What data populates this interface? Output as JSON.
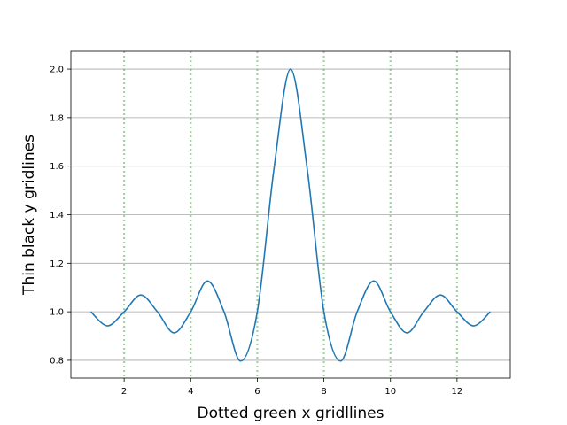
{
  "chart_data": {
    "type": "line",
    "title": "",
    "xlabel": "Dotted green x gridllines",
    "ylabel": "Thin black y gridlines",
    "xlim": [
      0.4,
      13.6
    ],
    "ylim": [
      0.7268,
      2.0732
    ],
    "x_ticks": [
      2,
      4,
      6,
      8,
      10,
      12
    ],
    "y_ticks": [
      0.8,
      1.0,
      1.2,
      1.4,
      1.6,
      1.8,
      2.0
    ],
    "x_tick_labels": [
      "2",
      "4",
      "6",
      "8",
      "10",
      "12"
    ],
    "y_tick_labels": [
      "0.8",
      "1.0",
      "1.2",
      "1.4",
      "1.6",
      "1.8",
      "2.0"
    ],
    "grid": {
      "x": "dotted green",
      "y": "solid thin black"
    },
    "colors": {
      "line": "#1f77b4",
      "x_grid": "#2ca02c",
      "y_grid": "#000000"
    },
    "series": [
      {
        "x": [
          1.0,
          1.5,
          2.0,
          2.5,
          3.0,
          3.5,
          4.0,
          4.5,
          5.0,
          5.5,
          6.0,
          6.5,
          7.0,
          7.5,
          8.0,
          8.5,
          9.0,
          9.5,
          10.0,
          10.5,
          11.0,
          11.5,
          12.0,
          12.5,
          13.0
        ],
        "y": [
          1.0,
          0.942,
          1.0,
          1.069,
          1.0,
          0.913,
          1.0,
          1.127,
          1.0,
          0.797,
          1.0,
          1.588,
          2.0,
          1.588,
          1.0,
          0.797,
          1.0,
          1.127,
          1.0,
          0.913,
          1.0,
          1.069,
          1.0,
          0.942,
          1.0
        ]
      }
    ]
  }
}
